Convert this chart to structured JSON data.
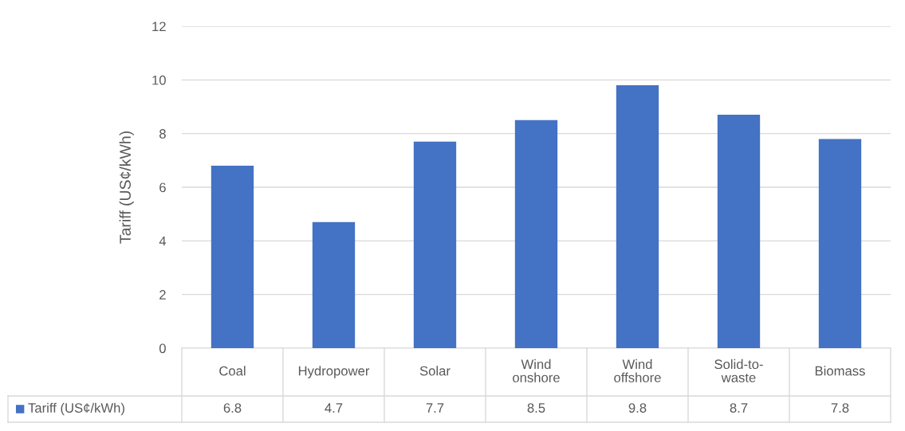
{
  "chart_data": {
    "type": "bar",
    "ylabel": "Tariff (US¢/kWh)",
    "categories": [
      "Coal",
      "Hydropower",
      "Solar",
      "Wind\nonshore",
      "Wind\noffshore",
      "Solid-to-\nwaste",
      "Biomass"
    ],
    "series": [
      {
        "name": "Tariff (US¢/kWh)",
        "color": "#4472c4",
        "values": [
          6.8,
          4.7,
          7.7,
          8.5,
          9.8,
          8.7,
          7.8
        ]
      }
    ],
    "ylim": [
      0,
      12
    ],
    "yticks": [
      0,
      2,
      4,
      6,
      8,
      10,
      12
    ],
    "grid": "y",
    "legend": "bottom",
    "data_labels": true
  }
}
